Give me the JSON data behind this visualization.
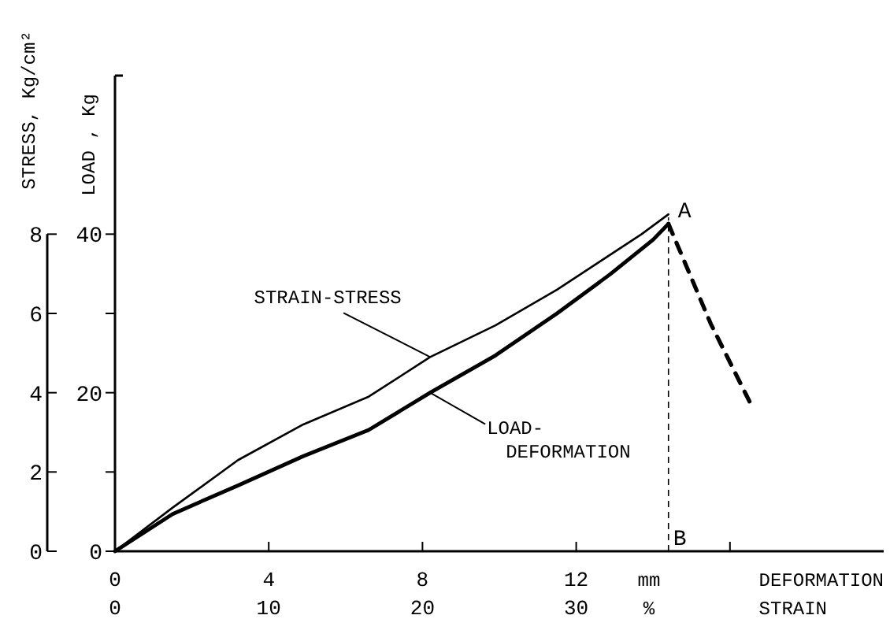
{
  "chart_data": {
    "type": "line",
    "xlabel": "DEFORMATION",
    "x2label": "STRAIN",
    "ylabel": "LOAD , Kg",
    "y2label": "STRESS, Kg/cm²",
    "xlim": [
      0,
      20
    ],
    "xticks": [
      0,
      4,
      8,
      12,
      {
        "value": 16,
        "label": null
      }
    ],
    "x2lim": [
      0,
      50
    ],
    "x2ticks": [
      0,
      10,
      20,
      30
    ],
    "ylim": [
      0,
      60
    ],
    "yticks": [
      0,
      {
        "value": 10,
        "label": null
      },
      20,
      {
        "value": 30,
        "label": null
      },
      40
    ],
    "y2lim": [
      0,
      12
    ],
    "y2ticks": [
      0,
      2,
      4,
      6,
      8
    ],
    "series": [
      {
        "name": "STRAIN-STRESS",
        "color": "#000000",
        "axis": "y2",
        "line_style": "solid",
        "x": [
          0,
          1.5,
          3.2,
          4.9,
          6.6,
          8.2,
          9.9,
          11.5,
          12.6,
          13.7,
          14.4
        ],
        "values": [
          0,
          1.1,
          2.3,
          3.2,
          3.9,
          4.9,
          5.7,
          6.6,
          7.3,
          8.0,
          8.5
        ]
      },
      {
        "name": "LOAD-DEFORMATION",
        "color": "#000000",
        "axis": "y",
        "line_style": "solid",
        "x": [
          0,
          1.5,
          3.2,
          4.9,
          6.6,
          8.2,
          9.9,
          11.5,
          12.9,
          14.0,
          14.4
        ],
        "values": [
          0,
          4.7,
          8.3,
          12,
          15.3,
          20,
          24.7,
          30,
          35,
          39.3,
          41.3
        ]
      },
      {
        "color": "#000000",
        "axis": "y",
        "line_style": "dashed",
        "x": [
          14.4,
          15.5,
          16.6
        ],
        "values": [
          41.3,
          28.7,
          18
        ]
      }
    ],
    "ref_lines": [
      {
        "axis": "x",
        "value": 14.4,
        "line_style": "dashed",
        "color": "#000000"
      }
    ],
    "annotations": [
      "mm",
      "%",
      {
        "text": "A",
        "x": 14.4,
        "y": 41.3
      },
      {
        "text": "B",
        "x": 14.4,
        "y": 0
      }
    ],
    "grid": false
  }
}
